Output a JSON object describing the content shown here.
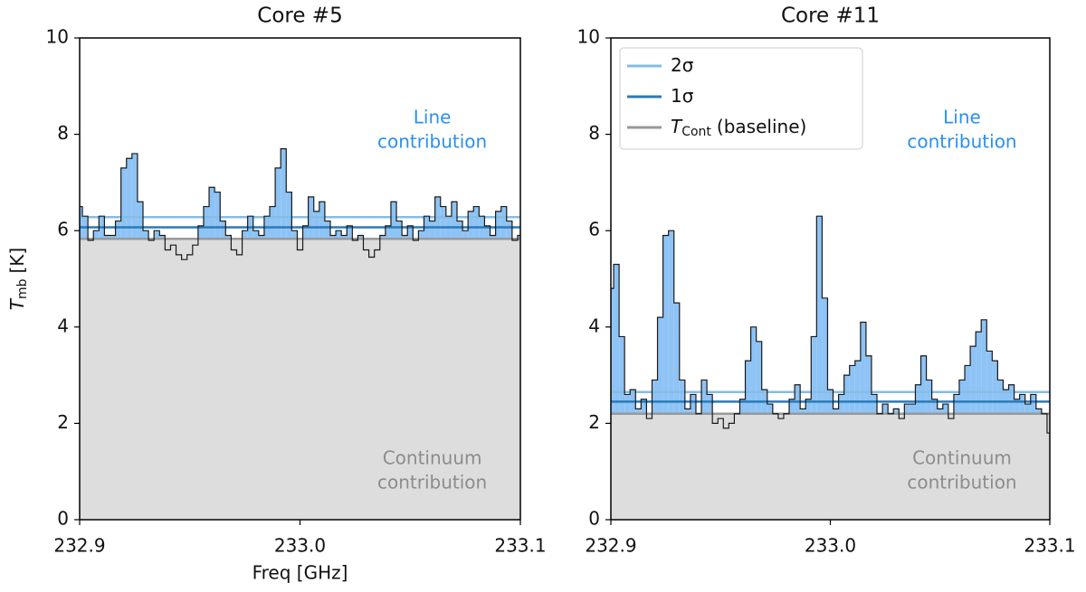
{
  "chart_data": [
    {
      "type": "line",
      "title": "Core #5",
      "xlabel": "Freq [GHz]",
      "ylabel": {
        "symbol": "T",
        "sub": "mb",
        "unit": "[K]"
      },
      "xlim": [
        232.9,
        233.1
      ],
      "ylim": [
        0,
        10
      ],
      "xticks": [
        232.9,
        {
          "value": 233.0,
          "label": "233.0"
        },
        233.1
      ],
      "yticks": [
        0,
        2,
        4,
        6,
        8,
        10
      ],
      "x": [
        232.9,
        232.9025,
        232.905,
        232.9075,
        232.91,
        232.9125,
        232.915,
        232.9175,
        232.92,
        232.9225,
        232.925,
        232.9275,
        232.93,
        232.9325,
        232.935,
        232.9375,
        232.94,
        232.9425,
        232.945,
        232.9475,
        232.95,
        232.9525,
        232.955,
        232.9575,
        232.96,
        232.9625,
        232.965,
        232.9675,
        232.97,
        232.9725,
        232.975,
        232.9775,
        232.98,
        232.9825,
        232.985,
        232.9875,
        232.99,
        232.9925,
        232.995,
        232.9975,
        233.0,
        233.0025,
        233.005,
        233.0075,
        233.01,
        233.0125,
        233.015,
        233.0175,
        233.02,
        233.0225,
        233.025,
        233.0275,
        233.03,
        233.0325,
        233.035,
        233.0375,
        233.04,
        233.0425,
        233.045,
        233.0475,
        233.05,
        233.0525,
        233.055,
        233.0575,
        233.06,
        233.0625,
        233.065,
        233.0675,
        233.07,
        233.0725,
        233.075,
        233.0775,
        233.08,
        233.0825,
        233.085,
        233.0875,
        233.09,
        233.0925,
        233.095,
        233.0975,
        233.1
      ],
      "series": [
        {
          "color": "#1a1a1a",
          "fill": "#8ec3f5",
          "values": [
            6.5,
            6.3,
            5.8,
            6.0,
            6.3,
            5.9,
            5.9,
            6.2,
            7.3,
            7.5,
            7.6,
            6.6,
            6.0,
            5.8,
            6.0,
            5.9,
            5.6,
            5.7,
            5.5,
            5.4,
            5.5,
            5.7,
            6.1,
            6.5,
            6.9,
            6.8,
            6.2,
            5.9,
            5.6,
            5.5,
            6.0,
            6.3,
            6.0,
            5.9,
            6.3,
            6.5,
            7.3,
            7.7,
            6.8,
            6.0,
            5.6,
            6.1,
            6.7,
            6.4,
            6.6,
            6.2,
            5.9,
            6.0,
            5.9,
            6.1,
            5.8,
            5.9,
            5.6,
            5.45,
            5.6,
            5.9,
            6.1,
            6.6,
            6.2,
            5.9,
            6.1,
            5.8,
            6.0,
            6.3,
            6.2,
            6.7,
            6.5,
            6.3,
            6.6,
            6.2,
            6.0,
            6.4,
            6.5,
            6.3,
            6.1,
            5.9,
            6.4,
            6.5,
            6.2,
            5.8,
            5.9
          ]
        }
      ],
      "hlines": [
        {
          "color": "#86bde3",
          "value": 6.28
        },
        {
          "color": "#2a7ab8",
          "value": 6.07
        },
        {
          "color": "#999999",
          "value": 5.83,
          "fill": "#dddddd"
        }
      ],
      "annotations": [
        {
          "lines": [
            "Line",
            "contribution"
          ],
          "color": "#2b90f0"
        },
        {
          "lines": [
            "Continuum",
            "contribution"
          ],
          "color": "#8c8c8c"
        }
      ]
    },
    {
      "type": "line",
      "title": "Core #11",
      "xlim": [
        232.9,
        233.1
      ],
      "ylim": [
        0,
        10
      ],
      "xticks": [
        232.9,
        {
          "value": 233.0,
          "label": "233.0"
        },
        233.1
      ],
      "yticks": [
        0,
        2,
        4,
        6,
        8,
        10
      ],
      "x": [
        232.9,
        232.9025,
        232.905,
        232.9075,
        232.91,
        232.9125,
        232.915,
        232.9175,
        232.92,
        232.9225,
        232.925,
        232.9275,
        232.93,
        232.9325,
        232.935,
        232.9375,
        232.94,
        232.9425,
        232.945,
        232.9475,
        232.95,
        232.9525,
        232.955,
        232.9575,
        232.96,
        232.9625,
        232.965,
        232.9675,
        232.97,
        232.9725,
        232.975,
        232.9775,
        232.98,
        232.9825,
        232.985,
        232.9875,
        232.99,
        232.9925,
        232.995,
        232.9975,
        233.0,
        233.0025,
        233.005,
        233.0075,
        233.01,
        233.0125,
        233.015,
        233.0175,
        233.02,
        233.0225,
        233.025,
        233.0275,
        233.03,
        233.0325,
        233.035,
        233.0375,
        233.04,
        233.0425,
        233.045,
        233.0475,
        233.05,
        233.0525,
        233.055,
        233.0575,
        233.06,
        233.0625,
        233.065,
        233.0675,
        233.07,
        233.0725,
        233.075,
        233.0775,
        233.08,
        233.0825,
        233.085,
        233.0875,
        233.09,
        233.0925,
        233.095,
        233.0975,
        233.1
      ],
      "series": [
        {
          "color": "#1a1a1a",
          "fill": "#8ec3f5",
          "values": [
            4.8,
            5.3,
            3.8,
            2.6,
            2.7,
            2.3,
            2.5,
            2.1,
            2.9,
            4.2,
            5.9,
            6.0,
            4.5,
            2.9,
            2.3,
            2.6,
            2.2,
            2.9,
            2.6,
            2.0,
            2.1,
            1.9,
            2.0,
            2.2,
            2.5,
            3.3,
            4.0,
            3.7,
            2.7,
            2.4,
            2.2,
            2.1,
            2.2,
            2.5,
            2.8,
            2.3,
            2.5,
            3.8,
            6.3,
            4.6,
            2.7,
            2.3,
            2.6,
            3.0,
            3.2,
            3.3,
            4.1,
            3.4,
            2.6,
            2.2,
            2.4,
            2.2,
            2.3,
            2.1,
            2.4,
            2.4,
            2.8,
            3.4,
            2.9,
            2.5,
            2.3,
            2.4,
            2.1,
            2.6,
            2.9,
            3.2,
            3.6,
            3.9,
            4.15,
            3.5,
            3.3,
            2.9,
            2.7,
            2.8,
            2.5,
            2.6,
            2.4,
            2.6,
            2.3,
            2.2,
            1.8
          ]
        }
      ],
      "hlines": [
        {
          "name": "2σ",
          "color": "#86bde3",
          "value": 2.65
        },
        {
          "name": "1σ",
          "color": "#2a7ab8",
          "value": 2.45
        },
        {
          "name": "T",
          "name_sub": "Cont",
          "name_rest": "(baseline)",
          "color": "#999999",
          "value": 2.2,
          "fill": "#dddddd"
        }
      ],
      "annotations": [
        {
          "lines": [
            "Line",
            "contribution"
          ],
          "color": "#2b90f0"
        },
        {
          "lines": [
            "Continuum",
            "contribution"
          ],
          "color": "#8c8c8c"
        }
      ]
    }
  ]
}
